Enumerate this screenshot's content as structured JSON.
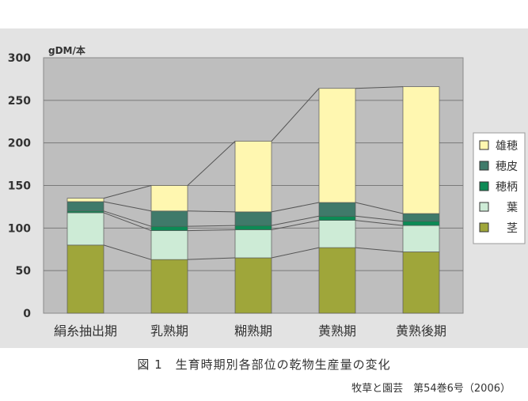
{
  "chart_data": {
    "type": "bar",
    "stacked": true,
    "unit_label": "gDM/本",
    "categories": [
      "絹糸抽出期",
      "乳熟期",
      "糊熟期",
      "黄熟期",
      "黄熟後期"
    ],
    "ylim": [
      0,
      300
    ],
    "yticks": [
      0,
      50,
      100,
      150,
      200,
      250,
      300
    ],
    "grid": true,
    "legend_position": "right",
    "series": [
      {
        "name": "茎",
        "color": "#9fa63a",
        "values": [
          80,
          63,
          65,
          77,
          72
        ]
      },
      {
        "name": "葉",
        "color": "#cdebd6",
        "values": [
          38,
          34,
          33,
          32,
          31
        ]
      },
      {
        "name": "穂柄",
        "color": "#0c8a55",
        "values": [
          2,
          5,
          5,
          5,
          5
        ]
      },
      {
        "name": "穂皮",
        "color": "#3f7a6a",
        "values": [
          11,
          18,
          16,
          16,
          9
        ]
      },
      {
        "name": "雄穂",
        "color": "#fff7b0",
        "values": [
          4,
          30,
          83,
          134,
          149
        ]
      }
    ]
  },
  "figure": {
    "caption": "図 1　生育時期別各部位の乾物生産量の変化",
    "source": "牧草と園芸　第54巻6号（2006）"
  }
}
